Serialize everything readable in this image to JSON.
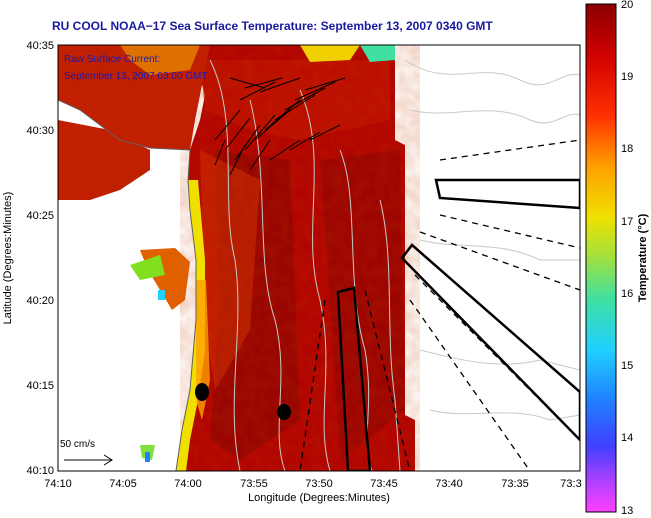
{
  "title": "RU COOL  NOAA−17  Sea Surface Temperature:  September 13, 2007 0340 GMT",
  "annotation": {
    "line1": "Raw Surface Current:",
    "line2": "September 13, 2007 03:00 GMT"
  },
  "scale_arrow": {
    "label": "50 cm/s"
  },
  "x_axis": {
    "label": "Longitude (Degrees:Minutes)",
    "ticks": [
      "74:10",
      "74:05",
      "74:00",
      "73:55",
      "73:50",
      "73:45",
      "73:40",
      "73:35",
      "73:3"
    ]
  },
  "y_axis": {
    "label": "Latitude (Degrees:Minutes)",
    "ticks": [
      "40:35",
      "40:30",
      "40:25",
      "40:20",
      "40:15",
      "40:10"
    ]
  },
  "colorbar": {
    "label": "Temperature (°C)",
    "ticks": [
      "20",
      "19",
      "18",
      "17",
      "16",
      "15",
      "14",
      "13"
    ],
    "min": 13,
    "max": 20,
    "colors": [
      "#ff40ff",
      "#6040ff",
      "#2060ff",
      "#20c0ff",
      "#40e0a0",
      "#a0e040",
      "#f0e000",
      "#ffa000",
      "#ff3000",
      "#d00000",
      "#8a0000"
    ]
  },
  "colors": {
    "sst_main": "#b00000",
    "sst_dark": "#8e0000",
    "sst_warm": "#d03000",
    "sst_coast": "#e8e000",
    "title_color": "#1a1aa0"
  }
}
